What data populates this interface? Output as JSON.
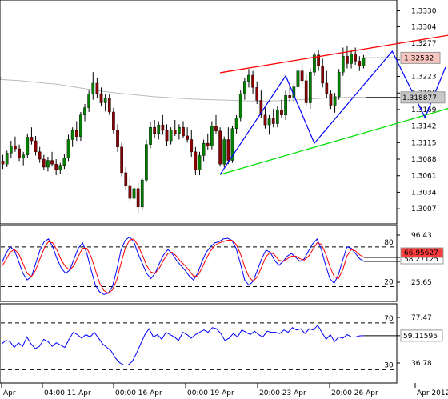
{
  "chart_data": [
    {
      "type": "candlestick",
      "pane": "price",
      "y_ticks": [
        "1.3330",
        "1.3304",
        "1.3277",
        "1.3250",
        "1.3223",
        "1.3196",
        "1.3169",
        "1.3142",
        "1.3115",
        "1.3088",
        "1.3061",
        "1.3034",
        "1.3007"
      ],
      "ylim": [
        1.2985,
        1.3345
      ],
      "last_price_label": "1.32532",
      "last_price": 1.32532,
      "ma_label": "1.318877",
      "ma_value": 1.318877,
      "candles": [
        [
          1.3085,
          1.3095,
          1.3072,
          1.308
        ],
        [
          1.308,
          1.3102,
          1.3075,
          1.3098
        ],
        [
          1.3098,
          1.3118,
          1.309,
          1.311
        ],
        [
          1.311,
          1.3125,
          1.31,
          1.3105
        ],
        [
          1.3105,
          1.3112,
          1.3085,
          1.309
        ],
        [
          1.309,
          1.31,
          1.3078,
          1.3095
        ],
        [
          1.3095,
          1.313,
          1.309,
          1.3124
        ],
        [
          1.3124,
          1.314,
          1.3112,
          1.3118
        ],
        [
          1.3118,
          1.3126,
          1.3094,
          1.31
        ],
        [
          1.31,
          1.3108,
          1.3082,
          1.3088
        ],
        [
          1.3088,
          1.3095,
          1.307,
          1.3075
        ],
        [
          1.3075,
          1.3092,
          1.3068,
          1.3086
        ],
        [
          1.3086,
          1.31,
          1.3076,
          1.308
        ],
        [
          1.308,
          1.3088,
          1.3062,
          1.307
        ],
        [
          1.307,
          1.3082,
          1.3064,
          1.3078
        ],
        [
          1.3078,
          1.3096,
          1.3072,
          1.309
        ],
        [
          1.309,
          1.3128,
          1.3085,
          1.312
        ],
        [
          1.312,
          1.314,
          1.3108,
          1.3135
        ],
        [
          1.3135,
          1.315,
          1.3118,
          1.3125
        ],
        [
          1.3125,
          1.3165,
          1.3118,
          1.316
        ],
        [
          1.316,
          1.3178,
          1.315,
          1.3172
        ],
        [
          1.3172,
          1.32,
          1.3165,
          1.3194
        ],
        [
          1.3194,
          1.323,
          1.3185,
          1.3212
        ],
        [
          1.3212,
          1.322,
          1.3188,
          1.3195
        ],
        [
          1.3195,
          1.3205,
          1.3174,
          1.318
        ],
        [
          1.318,
          1.3195,
          1.3166,
          1.3188
        ],
        [
          1.3188,
          1.3195,
          1.316,
          1.3165
        ],
        [
          1.3165,
          1.3172,
          1.313,
          1.3136
        ],
        [
          1.3136,
          1.3145,
          1.31,
          1.3108
        ],
        [
          1.3108,
          1.3115,
          1.306,
          1.3066
        ],
        [
          1.3066,
          1.3075,
          1.3038,
          1.3045
        ],
        [
          1.3045,
          1.3058,
          1.3018,
          1.3024
        ],
        [
          1.3024,
          1.3046,
          1.3008,
          1.304
        ],
        [
          1.304,
          1.3052,
          1.3,
          1.301
        ],
        [
          1.301,
          1.3058,
          1.3005,
          1.3054
        ],
        [
          1.3054,
          1.312,
          1.305,
          1.3112
        ],
        [
          1.3112,
          1.3148,
          1.3106,
          1.314
        ],
        [
          1.314,
          1.3152,
          1.3122,
          1.313
        ],
        [
          1.313,
          1.315,
          1.312,
          1.3144
        ],
        [
          1.3144,
          1.316,
          1.3128,
          1.3135
        ],
        [
          1.3135,
          1.3145,
          1.311,
          1.3118
        ],
        [
          1.3118,
          1.314,
          1.3112,
          1.3136
        ],
        [
          1.3136,
          1.3152,
          1.3126,
          1.313
        ],
        [
          1.313,
          1.3145,
          1.312,
          1.314
        ],
        [
          1.314,
          1.315,
          1.3122,
          1.3126
        ],
        [
          1.3126,
          1.314,
          1.3115,
          1.312
        ],
        [
          1.312,
          1.3136,
          1.3092,
          1.31
        ],
        [
          1.31,
          1.3108,
          1.3062,
          1.307
        ],
        [
          1.307,
          1.31,
          1.3062,
          1.3094
        ],
        [
          1.3094,
          1.312,
          1.3085,
          1.3114
        ],
        [
          1.3114,
          1.313,
          1.3104,
          1.311
        ],
        [
          1.311,
          1.315,
          1.3104,
          1.3142
        ],
        [
          1.3142,
          1.316,
          1.313,
          1.3134
        ],
        [
          1.3134,
          1.314,
          1.3076,
          1.308
        ],
        [
          1.308,
          1.3125,
          1.3075,
          1.312
        ],
        [
          1.312,
          1.314,
          1.308,
          1.3086
        ],
        [
          1.3086,
          1.3142,
          1.3082,
          1.3138
        ],
        [
          1.3138,
          1.316,
          1.313,
          1.3155
        ],
        [
          1.3155,
          1.32,
          1.315,
          1.3194
        ],
        [
          1.3194,
          1.322,
          1.3185,
          1.3215
        ],
        [
          1.3215,
          1.3235,
          1.3205,
          1.3225
        ],
        [
          1.3225,
          1.3232,
          1.3195,
          1.3205
        ],
        [
          1.3205,
          1.3215,
          1.3178,
          1.3184
        ],
        [
          1.3184,
          1.32,
          1.3156,
          1.316
        ],
        [
          1.316,
          1.3172,
          1.3138,
          1.3144
        ],
        [
          1.3144,
          1.316,
          1.3128,
          1.3154
        ],
        [
          1.3154,
          1.317,
          1.314,
          1.3146
        ],
        [
          1.3146,
          1.3175,
          1.314,
          1.3168
        ],
        [
          1.3168,
          1.3185,
          1.3155,
          1.316
        ],
        [
          1.316,
          1.32,
          1.3152,
          1.3192
        ],
        [
          1.3192,
          1.321,
          1.3182,
          1.3188
        ],
        [
          1.3188,
          1.3212,
          1.318,
          1.3206
        ],
        [
          1.3206,
          1.324,
          1.3198,
          1.3232
        ],
        [
          1.3232,
          1.3245,
          1.321,
          1.3216
        ],
        [
          1.3216,
          1.3226,
          1.3175,
          1.318
        ],
        [
          1.318,
          1.3236,
          1.317,
          1.323
        ],
        [
          1.323,
          1.3262,
          1.3224,
          1.3258
        ],
        [
          1.3258,
          1.3266,
          1.3232,
          1.324
        ],
        [
          1.324,
          1.3252,
          1.3205,
          1.3212
        ],
        [
          1.3212,
          1.3232,
          1.3188,
          1.3195
        ],
        [
          1.3195,
          1.32,
          1.317,
          1.3176
        ],
        [
          1.3176,
          1.3196,
          1.3164,
          1.319
        ],
        [
          1.319,
          1.3235,
          1.3185,
          1.323
        ],
        [
          1.323,
          1.327,
          1.3224,
          1.3256
        ],
        [
          1.3256,
          1.3272,
          1.3236,
          1.3244
        ],
        [
          1.3244,
          1.3266,
          1.3236,
          1.326
        ],
        [
          1.326,
          1.327,
          1.3242,
          1.3248
        ],
        [
          1.3248,
          1.3256,
          1.3232,
          1.324
        ],
        [
          1.324,
          1.3258,
          1.3236,
          1.32532
        ]
      ],
      "moving_average": [
        1.3218,
        1.3216,
        1.3213,
        1.321,
        1.3205,
        1.32,
        1.3196,
        1.3193,
        1.319,
        1.3188,
        1.3186,
        1.3185,
        1.3184,
        1.3183,
        1.3183,
        1.3184,
        1.3186,
        1.3188,
        1.3189,
        1.3189
      ],
      "trendlines": [
        {
          "color": "#ff0000",
          "from": [
            53,
            1.3229
          ],
          "to": [
            114,
            1.3296
          ]
        },
        {
          "color": "#00dd00",
          "from": [
            53,
            1.3063
          ],
          "to": [
            114,
            1.3181
          ]
        },
        {
          "color": "#0000ff",
          "points": [
            [
              53,
              1.3063
            ],
            [
              69,
              1.3224
            ],
            [
              76,
              1.3114
            ],
            [
              95,
              1.3264
            ],
            [
              103,
              1.3156
            ],
            [
              108,
              1.3238
            ]
          ]
        }
      ],
      "x_labels": [
        "Apr",
        "04:00 11 Apr",
        "00:00 16 Apr",
        "00:00 19 Apr",
        "20:00 23 Apr",
        "20:00 26 Apr",
        "Apr 2012"
      ]
    },
    {
      "type": "line",
      "pane": "stochastic",
      "y_ticks": [
        "96.43",
        "25.65"
      ],
      "ylim": [
        0,
        110
      ],
      "levels": [
        80,
        20
      ],
      "level_labels": [
        "80",
        "20"
      ],
      "value_labels": [
        "66.95627",
        "58.27125"
      ],
      "series": [
        {
          "color": "#0000ff",
          "values": [
            55,
            70,
            80,
            75,
            58,
            40,
            30,
            35,
            55,
            75,
            88,
            92,
            80,
            62,
            48,
            40,
            45,
            62,
            78,
            86,
            70,
            45,
            22,
            12,
            8,
            10,
            20,
            45,
            75,
            90,
            95,
            88,
            70,
            55,
            40,
            32,
            40,
            55,
            68,
            76,
            70,
            60,
            52,
            45,
            36,
            30,
            40,
            58,
            72,
            80,
            86,
            88,
            92,
            93,
            90,
            78,
            55,
            30,
            22,
            28,
            45,
            62,
            75,
            72,
            60,
            52,
            58,
            66,
            70,
            64,
            58,
            62,
            74,
            85,
            92,
            76,
            52,
            32,
            25,
            38,
            60,
            80,
            78,
            70,
            62,
            58
          ]
        },
        {
          "color": "#ff0000",
          "values": [
            50,
            60,
            72,
            76,
            70,
            55,
            40,
            35,
            45,
            62,
            78,
            88,
            86,
            75,
            60,
            50,
            45,
            52,
            66,
            78,
            78,
            65,
            45,
            25,
            14,
            10,
            15,
            30,
            55,
            78,
            90,
            92,
            82,
            68,
            52,
            42,
            40,
            48,
            60,
            70,
            72,
            66,
            58,
            52,
            44,
            36,
            36,
            48,
            62,
            74,
            82,
            86,
            88,
            90,
            90,
            84,
            70,
            50,
            35,
            28,
            35,
            50,
            65,
            72,
            68,
            60,
            58,
            62,
            66,
            66,
            62,
            60,
            66,
            76,
            86,
            84,
            70,
            50,
            35,
            32,
            45,
            66,
            76,
            74,
            68,
            64
          ]
        }
      ]
    },
    {
      "type": "line",
      "pane": "rsi",
      "y_ticks": [
        "77.47",
        "36.78"
      ],
      "ylim": [
        20,
        85
      ],
      "levels": [
        70,
        30
      ],
      "level_labels": [
        "70",
        "30"
      ],
      "value_label": "59.11595",
      "series": [
        {
          "color": "#0000ff",
          "values": [
            52,
            55,
            54,
            49,
            53,
            50,
            58,
            52,
            48,
            50,
            56,
            54,
            50,
            53,
            51,
            49,
            56,
            62,
            60,
            57,
            60,
            58,
            62,
            57,
            52,
            49,
            46,
            40,
            36,
            34,
            34,
            37,
            44,
            52,
            60,
            65,
            58,
            60,
            56,
            62,
            60,
            58,
            55,
            62,
            60,
            57,
            60,
            62,
            64,
            62,
            66,
            65,
            61,
            55,
            57,
            61,
            58,
            64,
            62,
            60,
            63,
            60,
            58,
            63,
            62,
            62,
            61,
            64,
            62,
            66,
            64,
            65,
            61,
            65,
            64,
            68,
            62,
            56,
            60,
            54,
            58,
            57,
            60,
            58,
            58,
            59,
            59.1
          ]
        }
      ]
    }
  ]
}
